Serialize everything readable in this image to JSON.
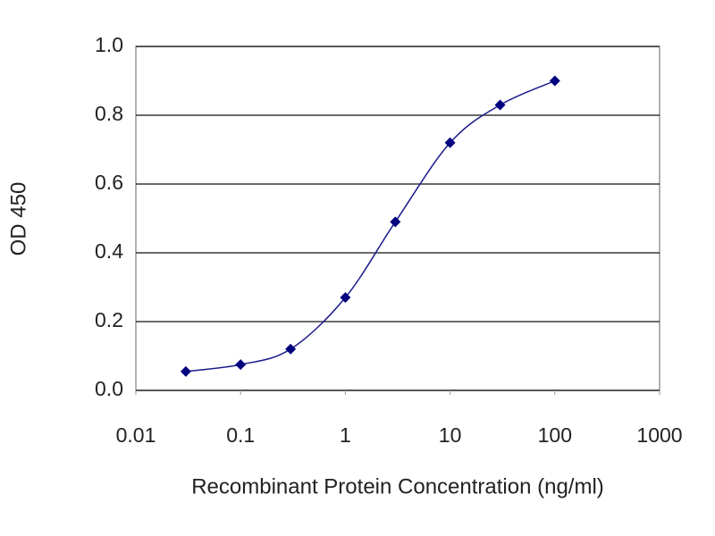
{
  "chart_data": {
    "type": "line",
    "x": [
      0.03,
      0.1,
      0.3,
      1,
      3,
      10,
      30,
      100
    ],
    "series": [
      {
        "color": "#1a1a8c",
        "values": [
          0.055,
          0.075,
          0.12,
          0.27,
          0.49,
          0.72,
          0.83,
          0.9
        ]
      }
    ],
    "xlabel": "Recombinant Protein Concentration (ng/ml)",
    "ylabel": "OD 450",
    "xscale": "log",
    "xlim": [
      0.01,
      1000
    ],
    "xticks": [
      0.01,
      0.1,
      1,
      10,
      100,
      1000
    ],
    "ylim": [
      0,
      1
    ],
    "yticks": [
      {
        "value": 0,
        "label": "0.0"
      },
      {
        "value": 0.2,
        "label": "0.2"
      },
      {
        "value": 0.4,
        "label": "0.4"
      },
      {
        "value": 0.6,
        "label": "0.6"
      },
      {
        "value": 0.8,
        "label": "0.8"
      },
      {
        "value": 1,
        "label": "1.0"
      }
    ],
    "grid": true
  }
}
